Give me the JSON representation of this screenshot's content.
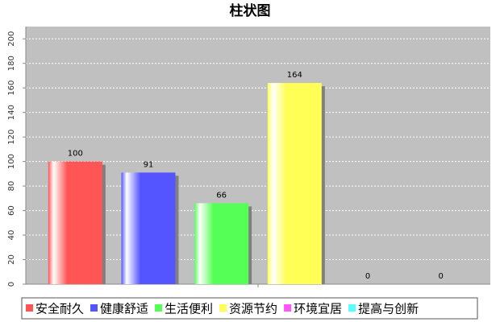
{
  "chart_data": {
    "type": "bar",
    "title": "柱状图",
    "categories": [
      "安全耐久",
      "健康舒适",
      "生活便利",
      "资源节约",
      "环境宜居",
      "提高与创新"
    ],
    "values": [
      100,
      91,
      66,
      164,
      0,
      0
    ],
    "colors": [
      "#ff5555",
      "#5555ff",
      "#55ff55",
      "#ffff55",
      "#ff55ff",
      "#55ffff"
    ],
    "ylim": [
      0,
      210
    ],
    "yticks": [
      0,
      20,
      40,
      60,
      80,
      100,
      120,
      140,
      160,
      180,
      200
    ],
    "grid": true
  }
}
